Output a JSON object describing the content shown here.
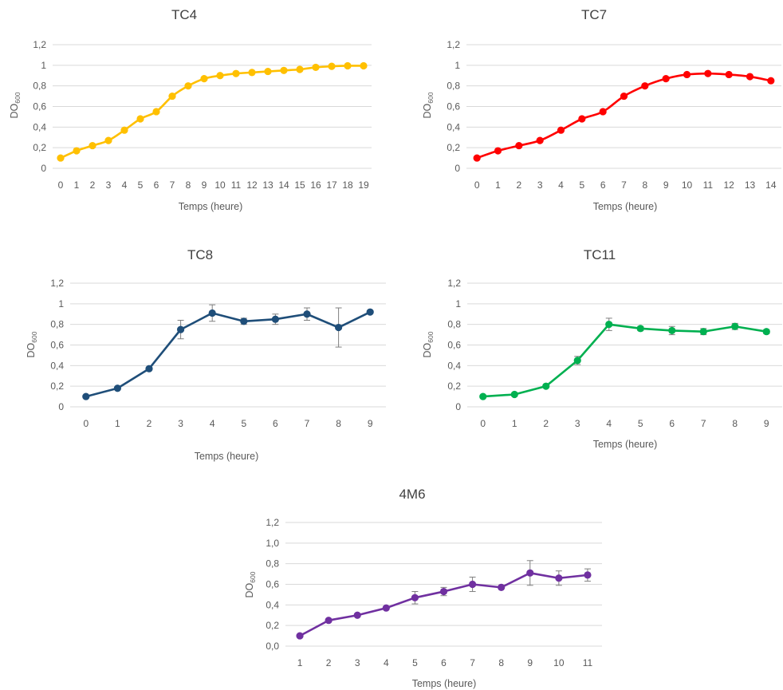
{
  "chart_data": [
    {
      "id": "tc4",
      "type": "line",
      "title": "TC4",
      "xlabel": "Temps (heure)",
      "ylabel_main": "DO",
      "ylabel_sub": "600",
      "color": "#FFC000",
      "smooth": true,
      "ylim": [
        0,
        1.2
      ],
      "yticks": [
        "0",
        "0,2",
        "0,4",
        "0,6",
        "0,8",
        "1",
        "1,2"
      ],
      "x": [
        0,
        1,
        2,
        3,
        4,
        5,
        6,
        7,
        8,
        9,
        10,
        11,
        12,
        13,
        14,
        15,
        16,
        17,
        18,
        19
      ],
      "y": [
        0.1,
        0.17,
        0.22,
        0.27,
        0.37,
        0.48,
        0.55,
        0.7,
        0.8,
        0.87,
        0.9,
        0.92,
        0.93,
        0.94,
        0.95,
        0.96,
        0.98,
        0.99,
        0.995,
        0.995
      ]
    },
    {
      "id": "tc7",
      "type": "line",
      "title": "TC7",
      "xlabel": "Temps (heure)",
      "ylabel_main": "DO",
      "ylabel_sub": "600",
      "color": "#FF0000",
      "smooth": true,
      "ylim": [
        0,
        1.2
      ],
      "yticks": [
        "0",
        "0,2",
        "0,4",
        "0,6",
        "0,8",
        "1",
        "1,2"
      ],
      "x": [
        0,
        1,
        2,
        3,
        4,
        5,
        6,
        7,
        8,
        9,
        10,
        11,
        12,
        13,
        14
      ],
      "y": [
        0.1,
        0.17,
        0.22,
        0.27,
        0.37,
        0.48,
        0.55,
        0.7,
        0.8,
        0.87,
        0.91,
        0.92,
        0.91,
        0.89,
        0.85
      ]
    },
    {
      "id": "tc8",
      "type": "line",
      "title": "TC8",
      "xlabel": "Temps (heure)",
      "ylabel_main": "DO",
      "ylabel_sub": "600",
      "color": "#1F4E79",
      "smooth": false,
      "ylim": [
        0,
        1.2
      ],
      "yticks": [
        "0",
        "0,2",
        "0,4",
        "0,6",
        "0,8",
        "1",
        "1,2"
      ],
      "x": [
        0,
        1,
        2,
        3,
        4,
        5,
        6,
        7,
        8,
        9
      ],
      "y": [
        0.1,
        0.18,
        0.37,
        0.75,
        0.91,
        0.83,
        0.85,
        0.9,
        0.77,
        0.92
      ],
      "err": [
        0,
        0,
        0,
        0.09,
        0.08,
        0.03,
        0.05,
        0.06,
        0.19,
        0
      ]
    },
    {
      "id": "tc11",
      "type": "line",
      "title": "TC11",
      "xlabel": "Temps (heure)",
      "ylabel_main": "DO",
      "ylabel_sub": "600",
      "color": "#00B050",
      "smooth": false,
      "ylim": [
        0,
        1.2
      ],
      "yticks": [
        "0",
        "0,2",
        "0,4",
        "0,6",
        "0,8",
        "1",
        "1,2"
      ],
      "x": [
        0,
        1,
        2,
        3,
        4,
        5,
        6,
        7,
        8,
        9
      ],
      "y": [
        0.1,
        0.12,
        0.2,
        0.45,
        0.8,
        0.76,
        0.74,
        0.73,
        0.78,
        0.73
      ],
      "err": [
        0,
        0,
        0,
        0.04,
        0.06,
        0.02,
        0.04,
        0.03,
        0.03,
        0.02
      ]
    },
    {
      "id": "m6",
      "type": "line",
      "title": "4M6",
      "xlabel": "Temps (heure)",
      "ylabel_main": "DO",
      "ylabel_sub": "600",
      "color": "#7030A0",
      "smooth": false,
      "ylim": [
        0,
        1.2
      ],
      "yticks": [
        "0,0",
        "0,2",
        "0,4",
        "0,6",
        "0,8",
        "1,0",
        "1,2"
      ],
      "x": [
        1,
        2,
        3,
        4,
        5,
        6,
        7,
        8,
        9,
        10,
        11
      ],
      "y": [
        0.1,
        0.25,
        0.3,
        0.37,
        0.47,
        0.53,
        0.6,
        0.57,
        0.71,
        0.66,
        0.69
      ],
      "err": [
        0,
        0,
        0,
        0,
        0.06,
        0.04,
        0.07,
        0,
        0.12,
        0.07,
        0.06
      ]
    }
  ]
}
